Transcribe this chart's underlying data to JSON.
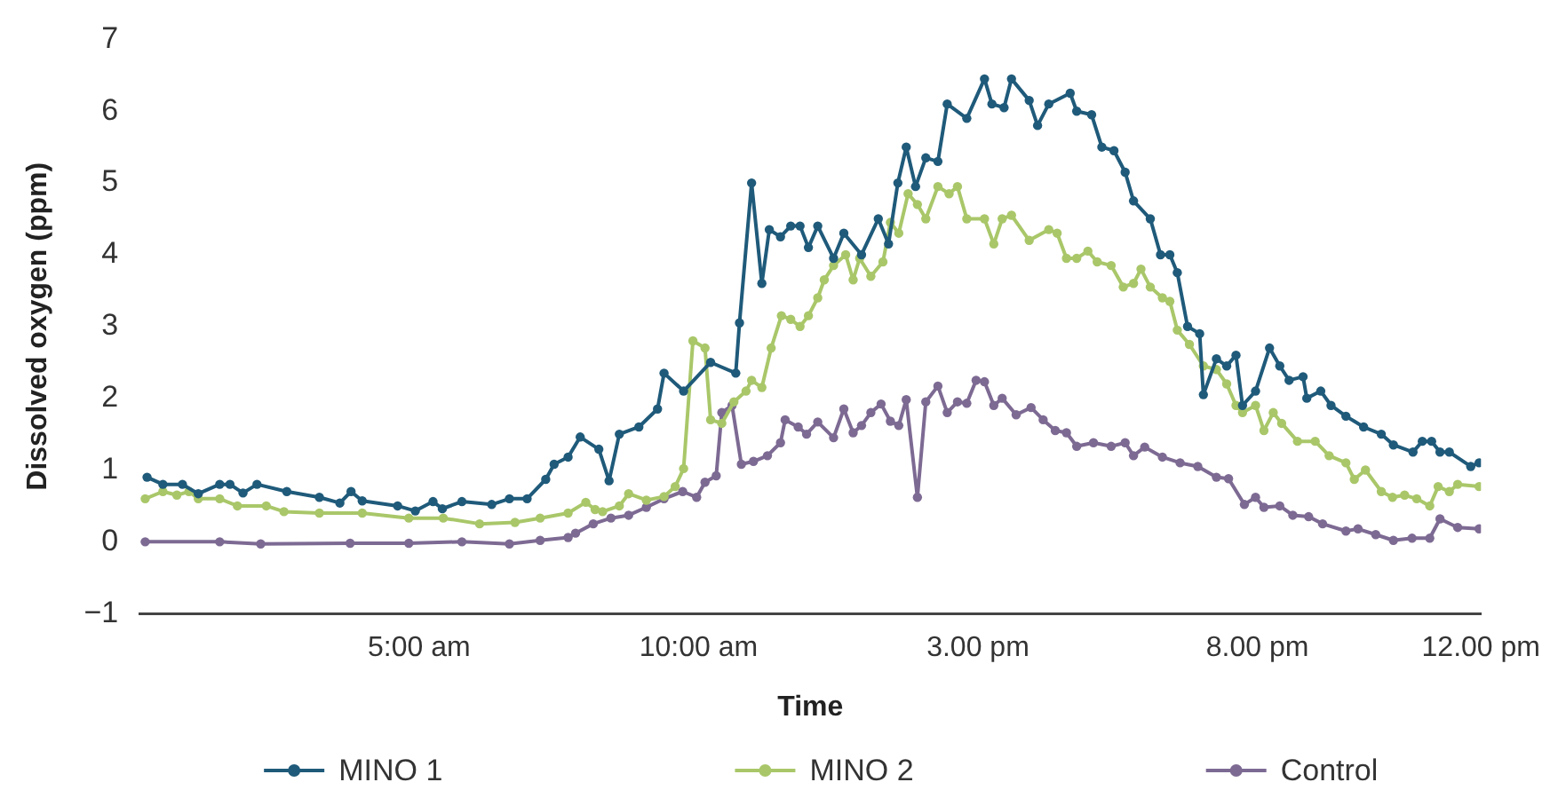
{
  "chart_data": {
    "type": "line",
    "xlabel": "Time",
    "ylabel": "Dissolved oxygen (ppm)",
    "xlim": [
      "--06-01T00:00",
      "--06-02T00:00"
    ],
    "xticks": [
      {
        "value": "--06-01T05:00",
        "label": "5:00 am"
      },
      {
        "value": "--06-01T10:00",
        "label": "10:00 am"
      },
      {
        "value": "--06-01T15:00",
        "label": "3.00 pm"
      },
      {
        "value": "--06-01T20:00",
        "label": "8.00 pm"
      },
      {
        "value": "--06-02T00:00",
        "label": "12.00 pm"
      }
    ],
    "ylim": [
      -1,
      7
    ],
    "yticks": [
      {
        "value": -1,
        "label": "−1"
      },
      0,
      1,
      2,
      3,
      4,
      5,
      6,
      7
    ],
    "grid": false,
    "legend": "bottom",
    "marker": "circle",
    "line_style": "solid",
    "series": [
      {
        "name": "MINO 1",
        "color": "#1f5a7a",
        "x": [
          "--06-01T00:08",
          "--06-01T00:25",
          "--06-01T00:46",
          "--06-01T01:03",
          "--06-01T01:26",
          "--06-01T01:37",
          "--06-01T01:51",
          "--06-01T02:06",
          "--06-01T02:38",
          "--06-01T03:13",
          "--06-01T03:35",
          "--06-01T03:47",
          "--06-01T03:59",
          "--06-01T04:37",
          "--06-01T04:56",
          "--06-01T05:15",
          "--06-01T05:25",
          "--06-01T05:46",
          "--06-01T06:18",
          "--06-01T06:37",
          "--06-01T06:56",
          "--06-01T07:16",
          "--06-01T07:25",
          "--06-01T07:40",
          "--06-01T07:53",
          "--06-01T08:13",
          "--06-01T08:24",
          "--06-01T08:35",
          "--06-01T08:56",
          "--06-01T09:16",
          "--06-01T09:23",
          "--06-01T09:44",
          "--06-01T10:13",
          "--06-01T10:40",
          "--06-01T10:44",
          "--06-01T10:57",
          "--06-01T11:08",
          "--06-01T11:16",
          "--06-01T11:28",
          "--06-01T11:39",
          "--06-01T11:49",
          "--06-01T11:58",
          "--06-01T12:08",
          "--06-01T12:25",
          "--06-01T12:36",
          "--06-01T12:55",
          "--06-01T13:13",
          "--06-01T13:24",
          "--06-01T13:34",
          "--06-01T13:43",
          "--06-01T13:53",
          "--06-01T14:04",
          "--06-01T14:17",
          "--06-01T14:27",
          "--06-01T14:48",
          "--06-01T15:07",
          "--06-01T15:15",
          "--06-01T15:28",
          "--06-01T15:36",
          "--06-01T15:55",
          "--06-01T16:04",
          "--06-01T16:16",
          "--06-01T16:39",
          "--06-01T16:46",
          "--06-01T17:02",
          "--06-01T17:13",
          "--06-01T17:26",
          "--06-01T17:38",
          "--06-01T17:47",
          "--06-01T18:05",
          "--06-01T18:16",
          "--06-01T18:26",
          "--06-01T18:34",
          "--06-01T18:45",
          "--06-01T18:58",
          "--06-01T19:02",
          "--06-01T19:16",
          "--06-01T19:27",
          "--06-01T19:37",
          "--06-01T19:44",
          "--06-01T19:58",
          "--06-01T20:13",
          "--06-01T20:24",
          "--06-01T20:34",
          "--06-01T20:49",
          "--06-01T20:53",
          "--06-01T21:08",
          "--06-01T21:19",
          "--06-01T21:35",
          "--06-01T21:54",
          "--06-01T22:13",
          "--06-01T22:26",
          "--06-01T22:47",
          "--06-01T22:57",
          "--06-01T23:07",
          "--06-01T23:16",
          "--06-01T23:26",
          "--06-01T23:49",
          "--06-01T23:58"
        ],
        "values": [
          0.9,
          0.8,
          0.8,
          0.67,
          0.8,
          0.8,
          0.68,
          0.8,
          0.7,
          0.62,
          0.54,
          0.7,
          0.57,
          0.5,
          0.43,
          0.56,
          0.46,
          0.56,
          0.52,
          0.6,
          0.6,
          0.87,
          1.08,
          1.18,
          1.46,
          1.29,
          0.85,
          1.5,
          1.6,
          1.85,
          2.35,
          2.1,
          2.5,
          2.35,
          3.05,
          5.0,
          3.6,
          4.35,
          4.25,
          4.4,
          4.4,
          4.1,
          4.4,
          3.95,
          4.3,
          4.0,
          4.5,
          4.15,
          5.0,
          5.5,
          4.95,
          5.35,
          5.3,
          6.1,
          5.9,
          6.45,
          6.1,
          6.05,
          6.45,
          6.15,
          5.8,
          6.1,
          6.25,
          6.0,
          5.95,
          5.5,
          5.45,
          5.15,
          4.75,
          4.5,
          4.0,
          4.0,
          3.75,
          3.0,
          2.9,
          2.05,
          2.55,
          2.45,
          2.6,
          1.9,
          2.1,
          2.7,
          2.45,
          2.25,
          2.3,
          2.0,
          2.1,
          1.9,
          1.75,
          1.6,
          1.5,
          1.35,
          1.25,
          1.4,
          1.4,
          1.25,
          1.25,
          1.05,
          1.1
        ]
      },
      {
        "name": "MINO 2",
        "color": "#a9c769",
        "x": [
          "--06-01T00:06",
          "--06-01T00:25",
          "--06-01T00:40",
          "--06-01T00:53",
          "--06-01T01:03",
          "--06-01T01:26",
          "--06-01T01:45",
          "--06-01T02:16",
          "--06-01T02:35",
          "--06-01T03:13",
          "--06-01T03:59",
          "--06-01T04:49",
          "--06-01T05:26",
          "--06-01T06:05",
          "--06-01T06:43",
          "--06-01T07:10",
          "--06-01T07:40",
          "--06-01T07:59",
          "--06-01T08:09",
          "--06-01T08:17",
          "--06-01T08:35",
          "--06-01T08:45",
          "--06-01T09:04",
          "--06-01T09:23",
          "--06-01T09:35",
          "--06-01T09:44",
          "--06-01T09:54",
          "--06-01T10:07",
          "--06-01T10:13",
          "--06-01T10:25",
          "--06-01T10:38",
          "--06-01T10:51",
          "--06-01T10:57",
          "--06-01T11:08",
          "--06-01T11:18",
          "--06-01T11:29",
          "--06-01T11:39",
          "--06-01T11:49",
          "--06-01T11:58",
          "--06-01T12:08",
          "--06-01T12:15",
          "--06-01T12:25",
          "--06-01T12:38",
          "--06-01T12:46",
          "--06-01T12:53",
          "--06-01T13:05",
          "--06-01T13:18",
          "--06-01T13:26",
          "--06-01T13:35",
          "--06-01T13:45",
          "--06-01T13:55",
          "--06-01T14:04",
          "--06-01T14:17",
          "--06-01T14:29",
          "--06-01T14:38",
          "--06-01T14:48",
          "--06-01T15:07",
          "--06-01T15:17",
          "--06-01T15:26",
          "--06-01T15:36",
          "--06-01T15:55",
          "--06-01T16:16",
          "--06-01T16:25",
          "--06-01T16:35",
          "--06-01T16:46",
          "--06-01T16:58",
          "--06-01T17:08",
          "--06-01T17:23",
          "--06-01T17:36",
          "--06-01T17:47",
          "--06-01T17:55",
          "--06-01T18:05",
          "--06-01T18:18",
          "--06-01T18:26",
          "--06-01T18:34",
          "--06-01T18:47",
          "--06-01T19:02",
          "--06-01T19:16",
          "--06-01T19:27",
          "--06-01T19:37",
          "--06-01T19:44",
          "--06-01T19:58",
          "--06-01T20:07",
          "--06-01T20:17",
          "--06-01T20:26",
          "--06-01T20:43",
          "--06-01T21:02",
          "--06-01T21:17",
          "--06-01T21:35",
          "--06-01T21:44",
          "--06-01T21:56",
          "--06-01T22:13",
          "--06-01T22:25",
          "--06-01T22:38",
          "--06-01T22:51",
          "--06-01T23:05",
          "--06-01T23:14",
          "--06-01T23:26",
          "--06-01T23:35",
          "--06-01T23:58"
        ],
        "values": [
          0.6,
          0.7,
          0.65,
          0.7,
          0.6,
          0.6,
          0.5,
          0.5,
          0.42,
          0.4,
          0.4,
          0.33,
          0.33,
          0.25,
          0.27,
          0.33,
          0.4,
          0.55,
          0.45,
          0.42,
          0.5,
          0.67,
          0.58,
          0.63,
          0.77,
          1.02,
          2.8,
          2.7,
          1.7,
          1.65,
          1.95,
          2.1,
          2.25,
          2.15,
          2.7,
          3.15,
          3.1,
          3.0,
          3.15,
          3.4,
          3.65,
          3.85,
          4.0,
          3.65,
          3.95,
          3.7,
          3.9,
          4.45,
          4.3,
          4.85,
          4.7,
          4.5,
          4.95,
          4.85,
          4.95,
          4.5,
          4.5,
          4.15,
          4.5,
          4.55,
          4.2,
          4.35,
          4.3,
          3.95,
          3.95,
          4.05,
          3.9,
          3.85,
          3.55,
          3.6,
          3.8,
          3.55,
          3.4,
          3.35,
          2.95,
          2.75,
          2.45,
          2.4,
          2.2,
          1.9,
          1.8,
          1.9,
          1.55,
          1.8,
          1.65,
          1.4,
          1.4,
          1.2,
          1.1,
          0.87,
          1.0,
          0.7,
          0.62,
          0.65,
          0.6,
          0.5,
          0.77,
          0.7,
          0.8,
          0.77
        ]
      },
      {
        "name": "Control",
        "color": "#7d6a93",
        "x": [
          "--06-01T00:06",
          "--06-01T01:26",
          "--06-01T02:10",
          "--06-01T03:46",
          "--06-01T04:49",
          "--06-01T05:46",
          "--06-01T06:37",
          "--06-01T07:10",
          "--06-01T07:40",
          "--06-01T07:48",
          "--06-01T08:07",
          "--06-01T08:26",
          "--06-01T08:45",
          "--06-01T09:04",
          "--06-01T09:23",
          "--06-01T09:43",
          "--06-01T09:58",
          "--06-01T10:07",
          "--06-01T10:19",
          "--06-01T10:25",
          "--06-01T10:36",
          "--06-01T10:46",
          "--06-01T10:59",
          "--06-01T11:14",
          "--06-01T11:28",
          "--06-01T11:33",
          "--06-01T11:47",
          "--06-01T11:56",
          "--06-01T12:08",
          "--06-01T12:25",
          "--06-01T12:36",
          "--06-01T12:46",
          "--06-01T12:55",
          "--06-01T13:05",
          "--06-01T13:16",
          "--06-01T13:26",
          "--06-01T13:35",
          "--06-01T13:43",
          "--06-01T13:55",
          "--06-01T14:04",
          "--06-01T14:17",
          "--06-01T14:27",
          "--06-01T14:38",
          "--06-01T14:48",
          "--06-01T14:58",
          "--06-01T15:07",
          "--06-01T15:17",
          "--06-01T15:26",
          "--06-01T15:41",
          "--06-01T15:57",
          "--06-01T16:10",
          "--06-01T16:23",
          "--06-01T16:35",
          "--06-01T16:46",
          "--06-01T17:04",
          "--06-01T17:23",
          "--06-01T17:38",
          "--06-01T17:47",
          "--06-01T17:59",
          "--06-01T18:18",
          "--06-01T18:37",
          "--06-01T18:56",
          "--06-01T19:16",
          "--06-01T19:29",
          "--06-01T19:46",
          "--06-01T19:58",
          "--06-01T20:07",
          "--06-01T20:24",
          "--06-01T20:38",
          "--06-01T20:55",
          "--06-01T21:10",
          "--06-01T21:35",
          "--06-01T21:48",
          "--06-01T22:07",
          "--06-01T22:26",
          "--06-01T22:46",
          "--06-01T23:05",
          "--06-01T23:16",
          "--06-01T23:35",
          "--06-01T23:58"
        ],
        "values": [
          0,
          0,
          -0.03,
          -0.02,
          -0.02,
          0,
          -0.03,
          0.02,
          0.06,
          0.12,
          0.25,
          0.33,
          0.37,
          0.48,
          0.6,
          0.7,
          0.62,
          0.83,
          0.92,
          1.8,
          1.9,
          1.08,
          1.12,
          1.2,
          1.38,
          1.7,
          1.6,
          1.5,
          1.67,
          1.45,
          1.85,
          1.52,
          1.62,
          1.8,
          1.92,
          1.68,
          1.62,
          1.98,
          0.62,
          1.95,
          2.17,
          1.8,
          1.95,
          1.93,
          2.25,
          2.23,
          1.9,
          2.0,
          1.77,
          1.87,
          1.7,
          1.55,
          1.52,
          1.33,
          1.38,
          1.33,
          1.38,
          1.2,
          1.32,
          1.18,
          1.1,
          1.05,
          0.9,
          0.88,
          0.52,
          0.62,
          0.48,
          0.5,
          0.37,
          0.35,
          0.25,
          0.15,
          0.18,
          0.1,
          0.02,
          0.05,
          0.05,
          0.32,
          0.2,
          0.18
        ]
      }
    ]
  }
}
